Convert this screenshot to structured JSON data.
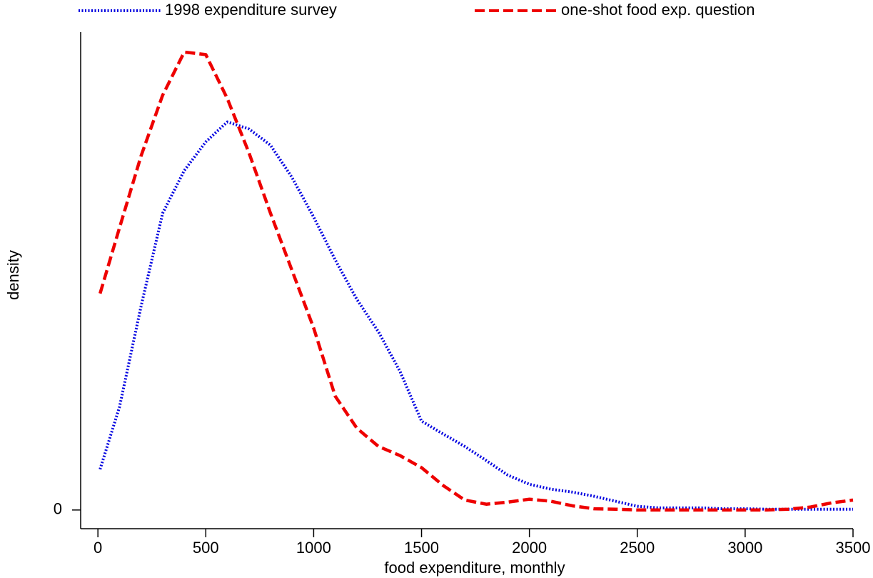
{
  "chart_data": {
    "type": "line",
    "x_label": "food expenditure, monthly",
    "y_label": "density",
    "x": [
      10,
      100,
      200,
      300,
      400,
      500,
      600,
      700,
      800,
      900,
      1000,
      1100,
      1200,
      1300,
      1400,
      1500,
      1600,
      1700,
      1800,
      1900,
      2000,
      2100,
      2200,
      2300,
      2400,
      2500,
      2600,
      2700,
      2800,
      2900,
      3000,
      3100,
      3200,
      3300,
      3400,
      3500
    ],
    "series": [
      {
        "name": "1998 expenditure survey",
        "color": "#0000e0",
        "dash": "dotted",
        "values": [
          9.8e-05,
          0.000248,
          0.00049,
          0.000714,
          0.000817,
          0.000886,
          0.000934,
          0.000917,
          0.000878,
          0.0008,
          0.000705,
          0.000602,
          0.000507,
          0.000429,
          0.000334,
          0.000214,
          0.000183,
          0.000153,
          0.000119,
          8.4e-05,
          6.2e-05,
          5e-05,
          4.3e-05,
          3.3e-05,
          2.1e-05,
          9e-06,
          5e-06,
          5e-06,
          5e-06,
          3e-06,
          3e-06,
          2e-06,
          2e-06,
          2e-06,
          2e-06,
          2e-06
        ]
      },
      {
        "name": "one-shot food exp. question",
        "color": "#ee0000",
        "dash": "dashed",
        "values": [
          0.000521,
          0.000679,
          0.000852,
          0.000998,
          0.001102,
          0.001096,
          0.00099,
          0.00086,
          0.000714,
          0.000576,
          0.000438,
          0.000274,
          0.000197,
          0.000153,
          0.000131,
          0.000102,
          5.9e-05,
          2.4e-05,
          1.4e-05,
          1.9e-05,
          2.6e-05,
          2.1e-05,
          1e-05,
          3e-06,
          2e-06,
          0,
          0,
          0,
          0,
          0,
          0,
          0,
          2e-06,
          7e-06,
          1.7e-05,
          2.4e-05
        ]
      }
    ],
    "xlim": [
      -80,
      3500
    ],
    "xticks": [
      0,
      500,
      1000,
      1500,
      2000,
      2500,
      3000,
      3500
    ],
    "ylim": [
      -4.5e-05,
      0.00115
    ],
    "yticks": [
      0
    ],
    "legend": "top"
  }
}
